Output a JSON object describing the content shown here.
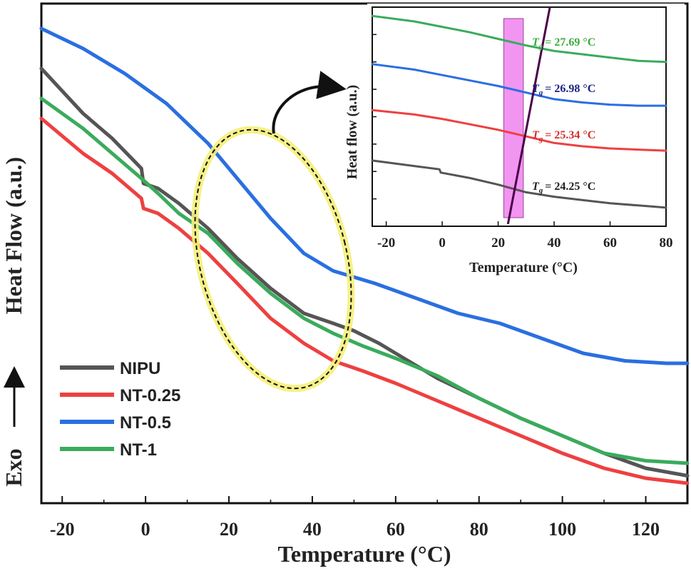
{
  "chart_data": [
    {
      "type": "line",
      "xlabel": "Temperature (°C)",
      "ylabel": "Heat Flow (a.u.)",
      "direction_label": "Exo",
      "xlim": [
        -25,
        130
      ],
      "ylim": [
        0,
        1
      ],
      "xticks": [
        -20,
        0,
        20,
        40,
        60,
        80,
        100,
        120
      ],
      "legend": {
        "placement": "bottom-left",
        "entries": [
          "NIPU",
          "NT-0.25",
          "NT-0.5",
          "NT-1"
        ]
      },
      "grid": false,
      "series": [
        {
          "name": "NIPU",
          "color": "#555555",
          "x": [
            -25,
            -15,
            -8,
            -1,
            -0.5,
            3,
            8,
            15,
            22,
            30,
            38,
            45,
            50,
            56,
            62,
            70,
            80,
            90,
            100,
            110,
            120,
            130
          ],
          "y": [
            0.87,
            0.78,
            0.73,
            0.67,
            0.64,
            0.63,
            0.6,
            0.55,
            0.49,
            0.43,
            0.38,
            0.36,
            0.345,
            0.32,
            0.29,
            0.25,
            0.21,
            0.17,
            0.135,
            0.1,
            0.07,
            0.055
          ]
        },
        {
          "name": "NT-0.25",
          "color": "#ee4040",
          "x": [
            -25,
            -15,
            -8,
            -1,
            -0.5,
            3,
            8,
            15,
            22,
            30,
            38,
            45,
            52,
            60,
            70,
            80,
            90,
            100,
            110,
            120,
            130
          ],
          "y": [
            0.77,
            0.7,
            0.66,
            0.61,
            0.59,
            0.58,
            0.55,
            0.5,
            0.44,
            0.37,
            0.32,
            0.285,
            0.265,
            0.24,
            0.205,
            0.17,
            0.135,
            0.1,
            0.07,
            0.05,
            0.04
          ]
        },
        {
          "name": "NT-0.5",
          "color": "#2a6fe0",
          "x": [
            -25,
            -15,
            -5,
            5,
            15,
            22,
            30,
            38,
            45,
            55,
            65,
            75,
            85,
            95,
            105,
            115,
            125,
            130
          ],
          "y": [
            0.95,
            0.91,
            0.86,
            0.8,
            0.72,
            0.65,
            0.57,
            0.5,
            0.465,
            0.44,
            0.41,
            0.38,
            0.36,
            0.33,
            0.3,
            0.285,
            0.28,
            0.28
          ]
        },
        {
          "name": "NT-1",
          "color": "#3aab5c",
          "x": [
            -25,
            -15,
            -8,
            -1,
            3,
            8,
            15,
            22,
            30,
            38,
            45,
            52,
            60,
            70,
            80,
            90,
            100,
            110,
            120,
            130
          ],
          "y": [
            0.81,
            0.75,
            0.7,
            0.65,
            0.62,
            0.58,
            0.54,
            0.48,
            0.42,
            0.37,
            0.34,
            0.315,
            0.29,
            0.255,
            0.21,
            0.17,
            0.135,
            0.1,
            0.085,
            0.08
          ]
        }
      ]
    },
    {
      "type": "line",
      "xlabel": "Temperature (°C)",
      "ylabel": "Heat flow (a.u.)",
      "xlim": [
        -25,
        80
      ],
      "ylim": [
        0,
        1
      ],
      "xticks": [
        -20,
        0,
        20,
        40,
        60,
        80
      ],
      "highlight_band": {
        "x": [
          22,
          29
        ],
        "color": "#ee82ee"
      },
      "tangent_line": {
        "x": [
          23.5,
          38.5
        ],
        "y": [
          0.01,
          1.0
        ],
        "color": "#4b0049"
      },
      "tg_labels": [
        {
          "symbol": "T",
          "subscript": "g",
          "value": "= 27.69 °C",
          "color": "#3aab3a"
        },
        {
          "symbol": "T",
          "subscript": "g",
          "value": "= 26.98 °C",
          "color": "#1a237e"
        },
        {
          "symbol": "T",
          "subscript": "g",
          "value": "= 25.34 °C",
          "color": "#d32f2f"
        },
        {
          "symbol": "T",
          "subscript": "g",
          "value": "= 24.25 °C",
          "color": "#222222"
        }
      ],
      "series": [
        {
          "name": "NT-1",
          "color": "#3aab5c",
          "x": [
            -25,
            -10,
            0,
            10,
            20,
            30,
            40,
            50,
            60,
            70,
            80
          ],
          "y": [
            0.96,
            0.935,
            0.91,
            0.885,
            0.855,
            0.825,
            0.8,
            0.785,
            0.77,
            0.755,
            0.75
          ]
        },
        {
          "name": "NT-0.5",
          "color": "#2a6fe0",
          "x": [
            -25,
            -10,
            0,
            10,
            20,
            30,
            40,
            50,
            60,
            70,
            80
          ],
          "y": [
            0.74,
            0.715,
            0.69,
            0.665,
            0.64,
            0.61,
            0.58,
            0.565,
            0.555,
            0.55,
            0.55
          ]
        },
        {
          "name": "NT-0.25",
          "color": "#ee4040",
          "x": [
            -25,
            -10,
            0,
            10,
            20,
            30,
            40,
            50,
            60,
            70,
            80
          ],
          "y": [
            0.53,
            0.51,
            0.49,
            0.465,
            0.44,
            0.41,
            0.38,
            0.365,
            0.355,
            0.35,
            0.345
          ]
        },
        {
          "name": "NIPU",
          "color": "#555555",
          "x": [
            -25,
            -10,
            -1,
            -0.5,
            10,
            20,
            30,
            40,
            50,
            60,
            70,
            80
          ],
          "y": [
            0.3,
            0.275,
            0.26,
            0.245,
            0.22,
            0.19,
            0.155,
            0.135,
            0.12,
            0.105,
            0.095,
            0.085
          ]
        }
      ]
    }
  ]
}
